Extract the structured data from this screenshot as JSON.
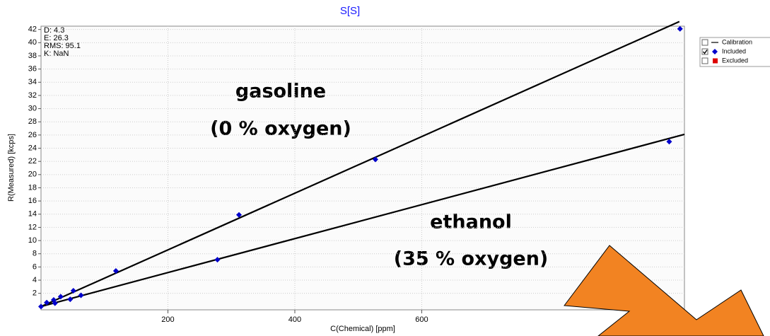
{
  "chart_data": {
    "type": "scatter",
    "title": "S[S]",
    "xlabel": "C(Chemical) [ppm]",
    "ylabel": "R(Measured) [kcps]",
    "xlim": [
      0,
      1014
    ],
    "ylim": [
      -0.5,
      42.5
    ],
    "xticks": [
      200,
      400,
      600
    ],
    "yticks": [
      2,
      4,
      6,
      8,
      10,
      12,
      14,
      16,
      18,
      20,
      22,
      24,
      26,
      28,
      30,
      32,
      34,
      36,
      38,
      40,
      42
    ],
    "grid": true,
    "stats": [
      "D: 4.3",
      "E: 26.3",
      "RMS: 95.1",
      "K: NaN"
    ],
    "annotations": [
      "gasoline",
      "(0 % oxygen)",
      "ethanol",
      "(35 % oxygen)"
    ],
    "calibration": {
      "name": "Calibration",
      "color": "#000000",
      "checked": false,
      "lines": [
        {
          "x": [
            0,
            1006
          ],
          "values": [
            0,
            43.2
          ]
        },
        {
          "x": [
            0,
            1014
          ],
          "values": [
            0,
            26.1
          ]
        }
      ]
    },
    "series": [
      {
        "name": "Included",
        "color": "#0000cc",
        "checked": true,
        "x": [
          0,
          9,
          20,
          22,
          31,
          46,
          51,
          63,
          118,
          278,
          312,
          527,
          990,
          1007
        ],
        "values": [
          0,
          0.6,
          1.0,
          0.5,
          1.5,
          1.1,
          2.4,
          1.7,
          5.4,
          7.1,
          13.9,
          22.3,
          25.0,
          42.1
        ]
      },
      {
        "name": "Excluded",
        "color": "#dd0000",
        "checked": false,
        "x": [],
        "values": []
      }
    ],
    "legend": "upper-right"
  }
}
